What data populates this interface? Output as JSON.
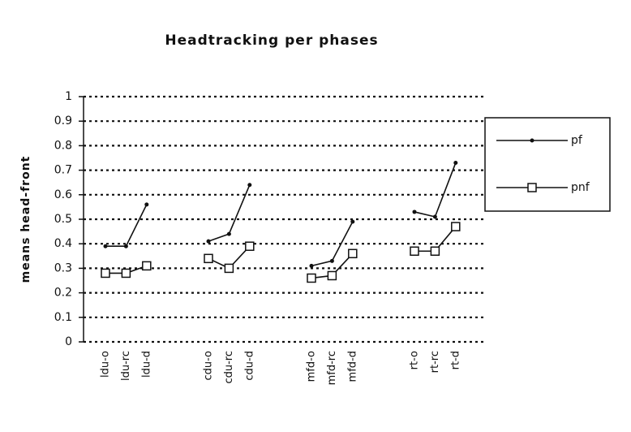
{
  "chart_data": {
    "type": "line",
    "title": "Headtracking per phases",
    "ylabel": "means head-front",
    "categories": [
      "ldu-o",
      "ldu-rc",
      "ldu-d",
      null,
      null,
      "cdu-o",
      "cdu-rc",
      "cdu-d",
      null,
      null,
      "mfd-o",
      "mfd-rc",
      "mfd-d",
      null,
      null,
      "rt-o",
      "rt-rc",
      "rt-d"
    ],
    "series": [
      {
        "name": "pf",
        "color": "#111111",
        "marker": "dot",
        "values": [
          0.39,
          0.39,
          0.56,
          null,
          null,
          0.41,
          0.44,
          0.64,
          null,
          null,
          0.31,
          0.33,
          0.49,
          null,
          null,
          0.53,
          0.51,
          0.73
        ]
      },
      {
        "name": "pnf",
        "color": "#111111",
        "marker": "square",
        "values": [
          0.28,
          0.28,
          0.31,
          null,
          null,
          0.34,
          0.3,
          0.39,
          null,
          null,
          0.26,
          0.27,
          0.36,
          null,
          null,
          0.37,
          0.37,
          0.47
        ]
      }
    ],
    "ylim": [
      0,
      1
    ],
    "yticks": [
      0,
      0.1,
      0.2,
      0.3,
      0.4,
      0.5,
      0.6,
      0.7,
      0.8,
      0.9,
      1
    ],
    "grid": true,
    "legend": "right"
  }
}
